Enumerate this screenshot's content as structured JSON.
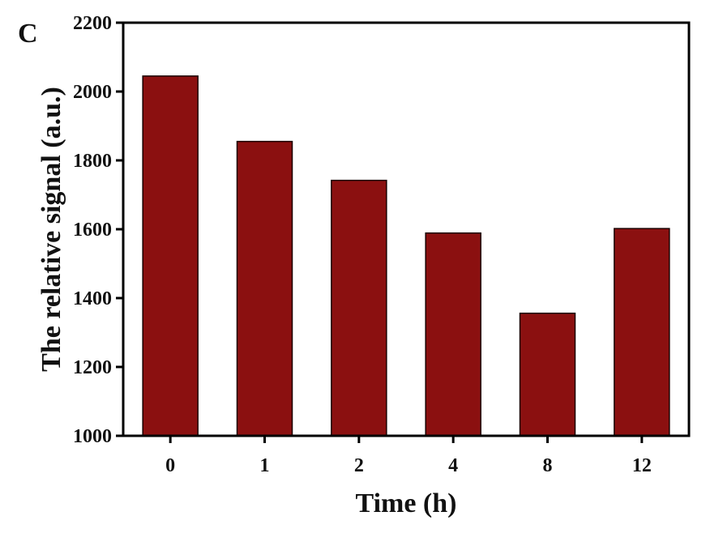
{
  "panel_label": "C",
  "colors": {
    "bar_fill": "#8b1010",
    "bar_stroke": "#1a0000",
    "axis": "#000000"
  },
  "chart_data": {
    "type": "bar",
    "categories": [
      "0",
      "1",
      "2",
      "4",
      "8",
      "12"
    ],
    "values": [
      2045,
      1855,
      1742,
      1589,
      1356,
      1602
    ],
    "xlabel": "Time (h)",
    "ylabel": "The relative signal (a.u.)",
    "ylim": [
      1000,
      2200
    ],
    "yticks": [
      1000,
      1200,
      1400,
      1600,
      1800,
      2000,
      2200
    ],
    "grid": false
  }
}
